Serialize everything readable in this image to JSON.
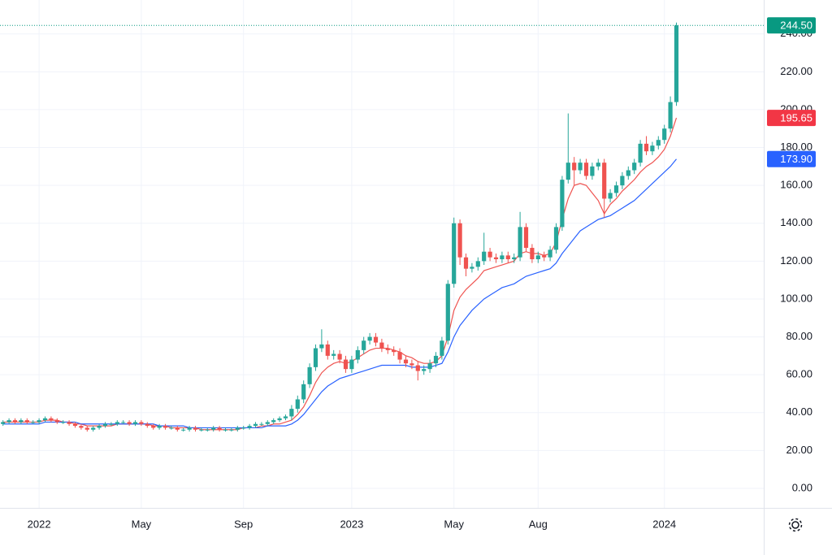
{
  "chart_data": {
    "type": "candlestick",
    "up_color": "#26a69a",
    "down_color": "#ef5350",
    "categories": [
      null,
      null,
      null,
      null,
      null,
      null,
      "2022",
      null,
      null,
      null,
      null,
      null,
      null,
      null,
      null,
      null,
      null,
      null,
      null,
      null,
      null,
      null,
      null,
      "May",
      null,
      null,
      null,
      null,
      null,
      null,
      null,
      null,
      null,
      null,
      null,
      null,
      null,
      null,
      null,
      null,
      "Sep",
      null,
      null,
      null,
      null,
      null,
      null,
      null,
      null,
      null,
      null,
      null,
      null,
      null,
      null,
      null,
      null,
      null,
      "2023",
      null,
      null,
      null,
      null,
      null,
      null,
      null,
      null,
      null,
      null,
      null,
      null,
      null,
      null,
      null,
      null,
      "May",
      null,
      null,
      null,
      null,
      null,
      null,
      null,
      null,
      null,
      null,
      null,
      null,
      null,
      "Aug",
      null,
      null,
      null,
      null,
      null,
      null,
      null,
      null,
      null,
      null,
      null,
      null,
      null,
      null,
      null,
      null,
      null,
      null,
      null,
      null,
      "2024",
      null,
      null
    ],
    "open": [
      34,
      35,
      36,
      35,
      36,
      35,
      35,
      36,
      37,
      36,
      35,
      35,
      34,
      33,
      32,
      31,
      32,
      33,
      34,
      34,
      35,
      35,
      34,
      35,
      34,
      33,
      32,
      33,
      32,
      32,
      31,
      31,
      32,
      31,
      31,
      31,
      32,
      31,
      31,
      31,
      32,
      32,
      33,
      34,
      34,
      35,
      36,
      37,
      38,
      42,
      47,
      55,
      64,
      74,
      76,
      70,
      71,
      68,
      63,
      68,
      73,
      78,
      80,
      77,
      74,
      73,
      72,
      68,
      66,
      65,
      62,
      63,
      66,
      70,
      78,
      108,
      140,
      122,
      116,
      117,
      120,
      125,
      122,
      121,
      123,
      121,
      122,
      138,
      127,
      121,
      123,
      122,
      126,
      138,
      163,
      172,
      168,
      172,
      165,
      170,
      172,
      153,
      156,
      160,
      165,
      168,
      172,
      182,
      178,
      181,
      184,
      190,
      204
    ],
    "high": [
      36,
      37,
      37,
      37,
      37,
      36,
      37,
      38,
      38,
      37,
      36,
      36,
      35,
      34,
      33,
      33,
      34,
      35,
      35,
      36,
      36,
      36,
      36,
      36,
      35,
      34,
      34,
      34,
      33,
      33,
      32,
      33,
      33,
      32,
      32,
      33,
      33,
      32,
      32,
      33,
      33,
      34,
      35,
      35,
      36,
      37,
      38,
      39,
      44,
      49,
      57,
      66,
      76,
      84,
      78,
      73,
      73,
      70,
      70,
      75,
      80,
      82,
      82,
      79,
      76,
      75,
      74,
      70,
      68,
      67,
      65,
      68,
      72,
      80,
      110,
      143,
      142,
      124,
      119,
      122,
      135,
      127,
      124,
      125,
      125,
      124,
      146,
      140,
      129,
      125,
      125,
      128,
      140,
      165,
      198,
      175,
      174,
      174,
      172,
      174,
      174,
      158,
      162,
      167,
      170,
      174,
      184,
      186,
      183,
      186,
      192,
      207,
      246
    ],
    "low": [
      33,
      34,
      34,
      34,
      34,
      34,
      34,
      35,
      35,
      34,
      34,
      33,
      32,
      31,
      30,
      30,
      31,
      32,
      33,
      33,
      34,
      33,
      33,
      33,
      32,
      31,
      31,
      31,
      31,
      30,
      30,
      30,
      30,
      30,
      30,
      30,
      30,
      30,
      30,
      30,
      31,
      31,
      32,
      33,
      33,
      34,
      35,
      36,
      36,
      40,
      45,
      53,
      62,
      72,
      68,
      68,
      66,
      61,
      61,
      66,
      71,
      76,
      75,
      72,
      71,
      70,
      66,
      64,
      63,
      57,
      60,
      61,
      64,
      68,
      76,
      106,
      118,
      112,
      114,
      115,
      118,
      120,
      119,
      119,
      119,
      119,
      120,
      125,
      119,
      119,
      120,
      120,
      124,
      136,
      161,
      160,
      166,
      163,
      163,
      168,
      143,
      151,
      154,
      158,
      163,
      166,
      170,
      176,
      176,
      179,
      182,
      188,
      202
    ],
    "close": [
      35,
      36,
      35,
      36,
      35,
      35,
      36,
      37,
      36,
      35,
      35,
      34,
      33,
      32,
      31,
      32,
      33,
      34,
      34,
      35,
      35,
      34,
      35,
      34,
      33,
      32,
      33,
      32,
      32,
      31,
      31,
      32,
      31,
      31,
      31,
      32,
      31,
      31,
      31,
      32,
      32,
      33,
      34,
      34,
      35,
      36,
      37,
      38,
      42,
      47,
      55,
      64,
      74,
      76,
      70,
      71,
      68,
      63,
      68,
      73,
      78,
      80,
      77,
      74,
      73,
      72,
      68,
      66,
      65,
      62,
      63,
      66,
      70,
      78,
      108,
      140,
      122,
      116,
      117,
      120,
      125,
      122,
      121,
      123,
      121,
      122,
      138,
      127,
      121,
      123,
      122,
      126,
      138,
      163,
      172,
      168,
      172,
      165,
      170,
      172,
      153,
      156,
      160,
      165,
      168,
      172,
      182,
      178,
      181,
      184,
      190,
      204,
      244.5
    ],
    "moving_averages": [
      {
        "color": "#ef5350",
        "values": [
          35,
          35,
          35,
          35,
          35,
          35,
          35,
          36,
          36,
          36,
          35,
          35,
          34,
          34,
          33,
          33,
          33,
          33,
          33,
          34,
          34,
          34,
          34,
          34,
          34,
          33,
          33,
          33,
          32,
          32,
          32,
          32,
          32,
          31,
          31,
          31,
          31,
          31,
          31,
          31,
          32,
          32,
          32,
          33,
          33,
          34,
          34,
          35,
          36,
          39,
          43,
          49,
          56,
          61,
          64,
          66,
          67,
          66,
          67,
          69,
          71,
          73,
          74,
          74,
          74,
          73,
          72,
          70,
          69,
          67,
          66,
          66,
          67,
          70,
          80,
          94,
          101,
          105,
          108,
          111,
          115,
          116,
          117,
          118,
          119,
          120,
          124,
          125,
          124,
          124,
          123,
          124,
          130,
          142,
          153,
          160,
          161,
          160,
          156,
          152,
          145,
          150,
          153,
          157,
          160,
          163,
          167,
          170,
          172,
          175,
          179,
          186,
          195.65
        ]
      },
      {
        "color": "#2962ff",
        "values": [
          34,
          34,
          34,
          34,
          34,
          34,
          34,
          35,
          35,
          35,
          35,
          35,
          35,
          34,
          34,
          34,
          34,
          34,
          34,
          34,
          34,
          34,
          34,
          34,
          34,
          34,
          33,
          33,
          33,
          33,
          33,
          32,
          32,
          32,
          32,
          32,
          32,
          32,
          32,
          32,
          32,
          32,
          32,
          32,
          33,
          33,
          33,
          33,
          34,
          36,
          39,
          43,
          47,
          51,
          54,
          56,
          58,
          59,
          60,
          61,
          62,
          63,
          64,
          65,
          65,
          65,
          65,
          65,
          64,
          64,
          64,
          64,
          65,
          66,
          72,
          80,
          86,
          90,
          94,
          97,
          100,
          102,
          104,
          106,
          107,
          108,
          110,
          112,
          113,
          114,
          115,
          116,
          119,
          124,
          128,
          132,
          136,
          138,
          140,
          142,
          143,
          144,
          146,
          148,
          150,
          152,
          155,
          158,
          161,
          164,
          167,
          170,
          173.9
        ]
      }
    ],
    "price_tags": [
      {
        "value": 244.5,
        "label": "244.50",
        "color": "#089981"
      },
      {
        "value": 195.65,
        "label": "195.65",
        "color": "#f23645"
      },
      {
        "value": 173.9,
        "label": "173.90",
        "color": "#2962ff"
      }
    ],
    "ylim": [
      -10.3,
      257.9
    ],
    "yticks": [
      {
        "value": 0,
        "label": "0.00"
      },
      {
        "value": 20,
        "label": "20.00"
      },
      {
        "value": 40,
        "label": "40.00"
      },
      {
        "value": 60,
        "label": "60.00"
      },
      {
        "value": 80,
        "label": "80.00"
      },
      {
        "value": 100,
        "label": "100.00"
      },
      {
        "value": 120,
        "label": "120.00"
      },
      {
        "value": 140,
        "label": "140.00"
      },
      {
        "value": 160,
        "label": "160.00"
      },
      {
        "value": 180,
        "label": "180.00"
      },
      {
        "value": 200,
        "label": "200.00"
      },
      {
        "value": 220,
        "label": "220.00"
      },
      {
        "value": 240,
        "label": "240.00"
      }
    ],
    "grid": true
  }
}
